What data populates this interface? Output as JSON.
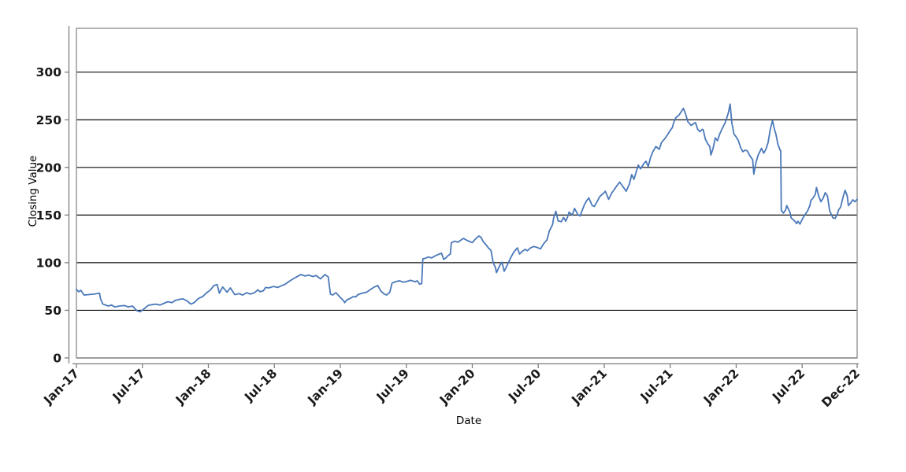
{
  "chart_data": {
    "type": "line",
    "title": "",
    "xlabel": "Date",
    "ylabel": "Closing Value",
    "grid": "horizontal-black",
    "legend": "none",
    "ylim": [
      0,
      346
    ],
    "yticks": [
      0,
      50,
      100,
      150,
      200,
      250,
      300
    ],
    "ytick_labels": [
      "0",
      "50",
      "100",
      "150",
      "200",
      "250",
      "300"
    ],
    "x_span_months": 71,
    "xticks": [
      {
        "label": "Jan-17",
        "m": 0
      },
      {
        "label": "Jul-17",
        "m": 6
      },
      {
        "label": "Jan-18",
        "m": 12
      },
      {
        "label": "Jul-18",
        "m": 18
      },
      {
        "label": "Jan-19",
        "m": 24
      },
      {
        "label": "Jul-19",
        "m": 30
      },
      {
        "label": "Jan-20",
        "m": 36
      },
      {
        "label": "Jul-20",
        "m": 42
      },
      {
        "label": "Jan-21",
        "m": 48
      },
      {
        "label": "Jul-21",
        "m": 54
      },
      {
        "label": "Jan-22",
        "m": 60
      },
      {
        "label": "Jul-22",
        "m": 66
      },
      {
        "label": "Dec-22",
        "m": 71
      }
    ],
    "colors": {
      "line": "#4b79b9",
      "gridline": "#0a0a0a",
      "spine": "#7f7f7f",
      "frame": "#8a8a8a",
      "tick": "#7f7f7f",
      "background": "#ffffff"
    },
    "series": [
      {
        "name": "Closing Value",
        "color": "#4b79b9",
        "points": [
          [
            0,
            72
          ],
          [
            0.2,
            69.5
          ],
          [
            0.4,
            71
          ],
          [
            0.7,
            66
          ],
          [
            1.1,
            66.5
          ],
          [
            1.6,
            67
          ],
          [
            2.1,
            68
          ],
          [
            2.2,
            62
          ],
          [
            2.4,
            56.5
          ],
          [
            2.9,
            54.5
          ],
          [
            3.2,
            55.5
          ],
          [
            3.5,
            53.5
          ],
          [
            3.9,
            54.5
          ],
          [
            4.4,
            55
          ],
          [
            4.7,
            53.5
          ],
          [
            5.1,
            54.5
          ],
          [
            5.5,
            49.5
          ],
          [
            5.8,
            48.5
          ],
          [
            6.2,
            52
          ],
          [
            6.5,
            55
          ],
          [
            6.9,
            56
          ],
          [
            7.2,
            56.5
          ],
          [
            7.6,
            55.5
          ],
          [
            8,
            57.5
          ],
          [
            8.3,
            59
          ],
          [
            8.7,
            58
          ],
          [
            9,
            60.5
          ],
          [
            9.4,
            61.5
          ],
          [
            9.7,
            62
          ],
          [
            10.1,
            59.5
          ],
          [
            10.4,
            56.5
          ],
          [
            10.7,
            58
          ],
          [
            11.1,
            62.5
          ],
          [
            11.5,
            64.5
          ],
          [
            11.8,
            68
          ],
          [
            12.2,
            71.5
          ],
          [
            12.5,
            76
          ],
          [
            12.8,
            77
          ],
          [
            13,
            68
          ],
          [
            13.3,
            74.5
          ],
          [
            13.7,
            69
          ],
          [
            14,
            73.5
          ],
          [
            14.4,
            66.5
          ],
          [
            14.8,
            67.5
          ],
          [
            15.1,
            66
          ],
          [
            15.5,
            68.5
          ],
          [
            15.8,
            67
          ],
          [
            16.2,
            68.5
          ],
          [
            16.5,
            71.5
          ],
          [
            16.7,
            69.5
          ],
          [
            17,
            70.5
          ],
          [
            17.2,
            74
          ],
          [
            17.5,
            73.5
          ],
          [
            17.9,
            75
          ],
          [
            18.3,
            74
          ],
          [
            18.6,
            75.5
          ],
          [
            19,
            77.5
          ],
          [
            19.3,
            80
          ],
          [
            19.7,
            83
          ],
          [
            20.1,
            85.5
          ],
          [
            20.4,
            87.5
          ],
          [
            20.8,
            86
          ],
          [
            21.1,
            87
          ],
          [
            21.5,
            85.5
          ],
          [
            21.8,
            86.5
          ],
          [
            22.2,
            83
          ],
          [
            22.6,
            87.5
          ],
          [
            22.9,
            85
          ],
          [
            23,
            76
          ],
          [
            23.1,
            67
          ],
          [
            23.3,
            66
          ],
          [
            23.6,
            68.5
          ],
          [
            24,
            63.5
          ],
          [
            24.3,
            60
          ],
          [
            24.4,
            58
          ],
          [
            24.6,
            61
          ],
          [
            24.9,
            62.5
          ],
          [
            25.2,
            64.5
          ],
          [
            25.4,
            64
          ],
          [
            25.6,
            66.5
          ],
          [
            26,
            68
          ],
          [
            26.4,
            69
          ],
          [
            26.7,
            71.5
          ],
          [
            27.1,
            74.5
          ],
          [
            27.4,
            76
          ],
          [
            27.7,
            70
          ],
          [
            28,
            67
          ],
          [
            28.2,
            66
          ],
          [
            28.5,
            69
          ],
          [
            28.7,
            78.5
          ],
          [
            29,
            80
          ],
          [
            29.4,
            81
          ],
          [
            29.7,
            79.5
          ],
          [
            30.1,
            80.5
          ],
          [
            30.4,
            81.5
          ],
          [
            30.8,
            80
          ],
          [
            31,
            81
          ],
          [
            31.2,
            77.5
          ],
          [
            31.4,
            78
          ],
          [
            31.5,
            104
          ],
          [
            31.7,
            104.5
          ],
          [
            32,
            106
          ],
          [
            32.3,
            105
          ],
          [
            32.6,
            107
          ],
          [
            32.9,
            108.5
          ],
          [
            33.2,
            110
          ],
          [
            33.4,
            103.5
          ],
          [
            33.6,
            105
          ],
          [
            33.8,
            107.5
          ],
          [
            34,
            109
          ],
          [
            34.1,
            121
          ],
          [
            34.4,
            122.5
          ],
          [
            34.7,
            121.5
          ],
          [
            35,
            124
          ],
          [
            35.2,
            125.5
          ],
          [
            35.5,
            123.5
          ],
          [
            35.8,
            122
          ],
          [
            36,
            121
          ],
          [
            36.3,
            125
          ],
          [
            36.6,
            128
          ],
          [
            36.8,
            126.5
          ],
          [
            37,
            122
          ],
          [
            37.2,
            119.5
          ],
          [
            37.5,
            115
          ],
          [
            37.7,
            113
          ],
          [
            37.9,
            100
          ],
          [
            38.1,
            95
          ],
          [
            38.2,
            89.5
          ],
          [
            38.5,
            97
          ],
          [
            38.7,
            100.5
          ],
          [
            38.9,
            91
          ],
          [
            39.1,
            95.5
          ],
          [
            39.4,
            103
          ],
          [
            39.6,
            107.5
          ],
          [
            39.8,
            111.5
          ],
          [
            40.1,
            115.5
          ],
          [
            40.3,
            109
          ],
          [
            40.5,
            111.5
          ],
          [
            40.8,
            114
          ],
          [
            41,
            112.5
          ],
          [
            41.3,
            115.5
          ],
          [
            41.6,
            117
          ],
          [
            41.9,
            116
          ],
          [
            42.2,
            114.5
          ],
          [
            42.5,
            120
          ],
          [
            42.8,
            124
          ],
          [
            43,
            133
          ],
          [
            43.3,
            140
          ],
          [
            43.4,
            147
          ],
          [
            43.6,
            154
          ],
          [
            43.8,
            144
          ],
          [
            44.1,
            143
          ],
          [
            44.3,
            147.5
          ],
          [
            44.5,
            143.5
          ],
          [
            44.7,
            149
          ],
          [
            44.8,
            153
          ],
          [
            45.1,
            150
          ],
          [
            45.3,
            157
          ],
          [
            45.6,
            150.5
          ],
          [
            45.8,
            149
          ],
          [
            46.2,
            161
          ],
          [
            46.4,
            165
          ],
          [
            46.6,
            168
          ],
          [
            46.9,
            160
          ],
          [
            47.1,
            159
          ],
          [
            47.3,
            163
          ],
          [
            47.6,
            169.5
          ],
          [
            47.9,
            172.5
          ],
          [
            48.1,
            175
          ],
          [
            48.4,
            166.5
          ],
          [
            48.7,
            173.5
          ],
          [
            48.9,
            176.5
          ],
          [
            49.1,
            180
          ],
          [
            49.4,
            184.5
          ],
          [
            49.6,
            181.5
          ],
          [
            50,
            175
          ],
          [
            50.3,
            183
          ],
          [
            50.5,
            192.5
          ],
          [
            50.7,
            187.5
          ],
          [
            50.9,
            195
          ],
          [
            51.1,
            202.5
          ],
          [
            51.3,
            198.5
          ],
          [
            51.6,
            204
          ],
          [
            51.8,
            206.5
          ],
          [
            52,
            201
          ],
          [
            52.2,
            210
          ],
          [
            52.4,
            216
          ],
          [
            52.7,
            222
          ],
          [
            53,
            219
          ],
          [
            53.2,
            226
          ],
          [
            53.6,
            231.5
          ],
          [
            53.9,
            237
          ],
          [
            54.2,
            242
          ],
          [
            54.3,
            246.5
          ],
          [
            54.5,
            252
          ],
          [
            54.8,
            255
          ],
          [
            55,
            258.5
          ],
          [
            55.2,
            262
          ],
          [
            55.4,
            256
          ],
          [
            55.6,
            248
          ],
          [
            55.8,
            245.5
          ],
          [
            55.9,
            244
          ],
          [
            56.2,
            246.5
          ],
          [
            56.3,
            247
          ],
          [
            56.5,
            240
          ],
          [
            56.7,
            237.5
          ],
          [
            56.9,
            240
          ],
          [
            57,
            239.5
          ],
          [
            57.2,
            229.5
          ],
          [
            57.4,
            225
          ],
          [
            57.6,
            222
          ],
          [
            57.7,
            213
          ],
          [
            57.9,
            220
          ],
          [
            58.1,
            231
          ],
          [
            58.3,
            228
          ],
          [
            58.5,
            235
          ],
          [
            58.7,
            240
          ],
          [
            59,
            247
          ],
          [
            59.2,
            254
          ],
          [
            59.3,
            258
          ],
          [
            59.45,
            266.5
          ],
          [
            59.6,
            247
          ],
          [
            59.8,
            235
          ],
          [
            60,
            232
          ],
          [
            60.2,
            228
          ],
          [
            60.4,
            221
          ],
          [
            60.6,
            216.5
          ],
          [
            60.8,
            218
          ],
          [
            61,
            217.5
          ],
          [
            61.2,
            213
          ],
          [
            61.5,
            208
          ],
          [
            61.6,
            193
          ],
          [
            61.8,
            205
          ],
          [
            62,
            213
          ],
          [
            62.3,
            220
          ],
          [
            62.5,
            215
          ],
          [
            62.7,
            219
          ],
          [
            62.9,
            226
          ],
          [
            63.1,
            240
          ],
          [
            63.3,
            249
          ],
          [
            63.5,
            239
          ],
          [
            63.6,
            235.5
          ],
          [
            63.8,
            224
          ],
          [
            64,
            218
          ],
          [
            64.05,
            217.5
          ],
          [
            64.1,
            155
          ],
          [
            64.3,
            152
          ],
          [
            64.5,
            155.5
          ],
          [
            64.6,
            160
          ],
          [
            64.8,
            155
          ],
          [
            64.9,
            152.5
          ],
          [
            65,
            147
          ],
          [
            65.3,
            144
          ],
          [
            65.5,
            141
          ],
          [
            65.6,
            143.5
          ],
          [
            65.8,
            140.5
          ],
          [
            65.9,
            143
          ],
          [
            66.1,
            147.5
          ],
          [
            66.3,
            151
          ],
          [
            66.5,
            154.5
          ],
          [
            66.7,
            160
          ],
          [
            66.8,
            165.5
          ],
          [
            67,
            168
          ],
          [
            67.2,
            172
          ],
          [
            67.3,
            179
          ],
          [
            67.5,
            170
          ],
          [
            67.7,
            164
          ],
          [
            67.9,
            167.5
          ],
          [
            68.1,
            173.5
          ],
          [
            68.3,
            170
          ],
          [
            68.5,
            154.5
          ],
          [
            68.7,
            149.5
          ],
          [
            68.8,
            147
          ],
          [
            69,
            146.5
          ],
          [
            69.2,
            151
          ],
          [
            69.3,
            155
          ],
          [
            69.5,
            158.5
          ],
          [
            69.7,
            168
          ],
          [
            69.9,
            176
          ],
          [
            70.1,
            170
          ],
          [
            70.2,
            160
          ],
          [
            70.4,
            162.5
          ],
          [
            70.6,
            166
          ],
          [
            70.8,
            164
          ],
          [
            71,
            166.5
          ]
        ]
      }
    ]
  }
}
